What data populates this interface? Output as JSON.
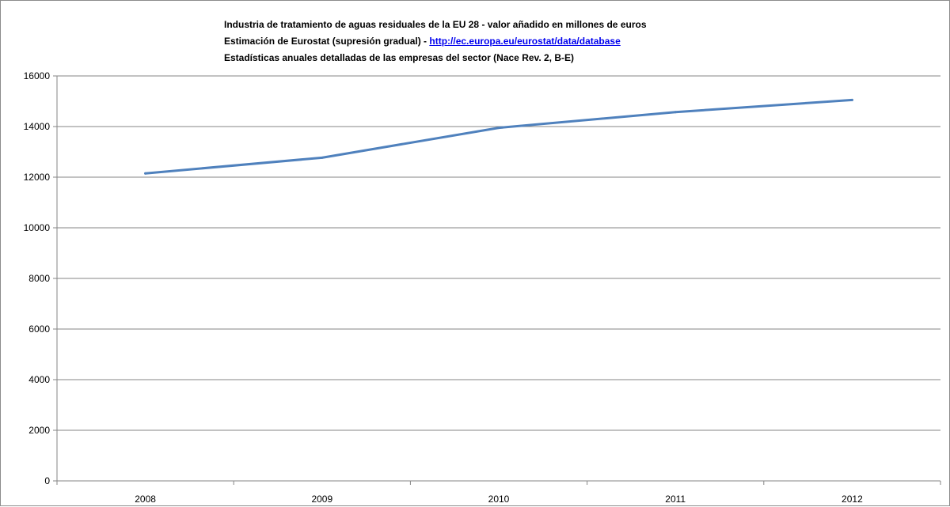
{
  "header": {
    "line1": "Industria de tratamiento de aguas residuales de la EU 28 - valor añadido en millones de euros",
    "line2_prefix": "Estimación de Eurostat (supresión gradual) - ",
    "line2_link": "http://ec.europa.eu/eurostat/data/database",
    "line3": "Estadísticas anuales detalladas de las empresas del sector (Nace Rev. 2, B-E)"
  },
  "colors": {
    "series": "#4f81bd",
    "grid": "#868686",
    "axis": "#868686",
    "link": "#0000ee"
  },
  "chart_data": {
    "type": "line",
    "title": "Industria de tratamiento de aguas residuales de la EU 28 - valor añadido en millones de euros",
    "xlabel": "",
    "ylabel": "",
    "categories": [
      "2008",
      "2009",
      "2010",
      "2011",
      "2012"
    ],
    "series": [
      {
        "values": [
          12150,
          12770,
          13950,
          14570,
          15050
        ]
      }
    ],
    "ylim": [
      0,
      16000
    ],
    "yticks": [
      0,
      2000,
      4000,
      6000,
      8000,
      10000,
      12000,
      14000,
      16000
    ],
    "grid": true,
    "legend": "none"
  }
}
